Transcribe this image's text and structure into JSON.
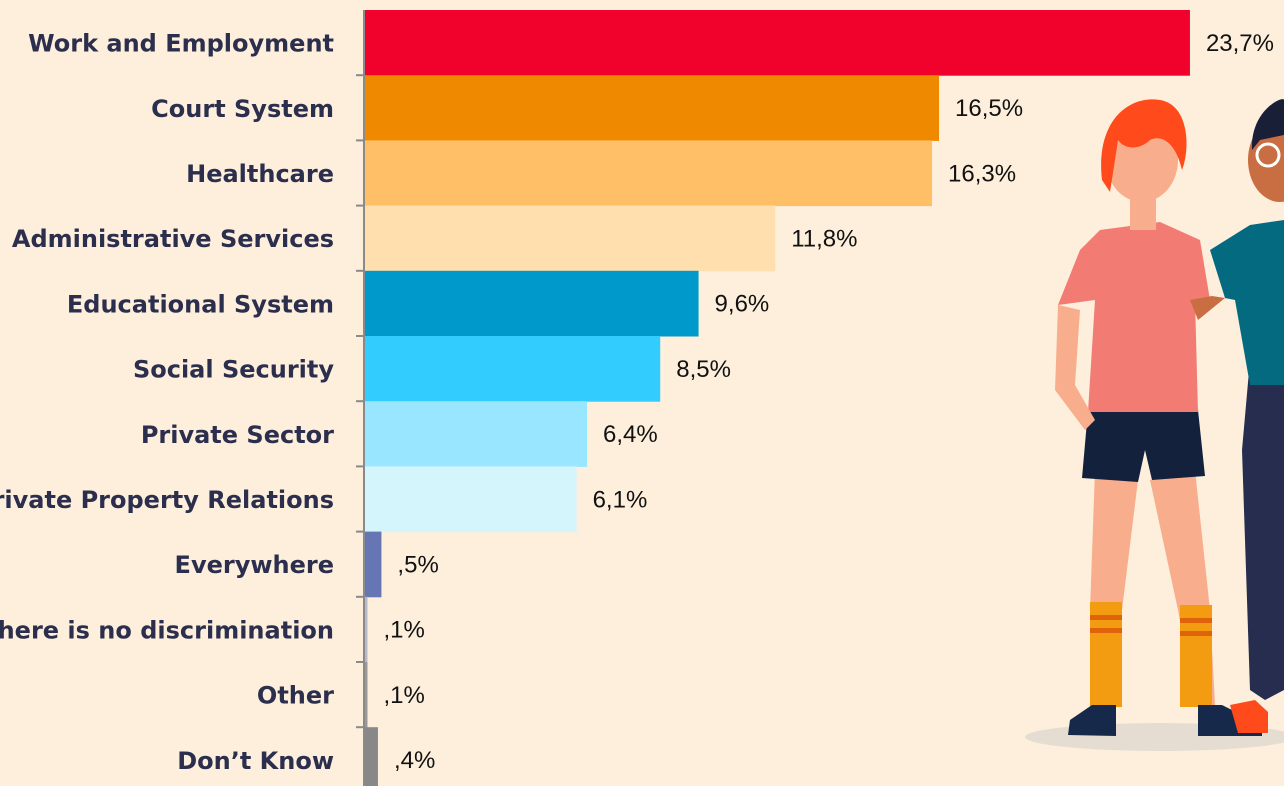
{
  "chart_data": {
    "type": "bar",
    "orientation": "horizontal",
    "categories": [
      "Work and Employment",
      "Court System",
      "Healthcare",
      "Administrative Services",
      "Educational System",
      "Social Security",
      "Private Sector",
      "Private Property Relations",
      "Everywhere",
      "There is no discrimination",
      "Other",
      "Don’t Know"
    ],
    "values": [
      23.7,
      16.5,
      16.3,
      11.8,
      9.6,
      8.5,
      6.4,
      6.1,
      0.5,
      0.1,
      0.1,
      0.4
    ],
    "value_labels": [
      "23,7%",
      "16,5%",
      "16,3%",
      "11,8%",
      "9,6%",
      "8,5%",
      "6,4%",
      "6,1%",
      ",5%",
      ",1%",
      ",1%",
      ",4%"
    ],
    "colors": [
      "#f0022c",
      "#ef8a00",
      "#ffbf66",
      "#ffdfae",
      "#0099cc",
      "#33ccff",
      "#98e6ff",
      "#d5f5fd",
      "#6675b3",
      "#b8b8c8",
      "#999999",
      "#888888"
    ]
  }
}
